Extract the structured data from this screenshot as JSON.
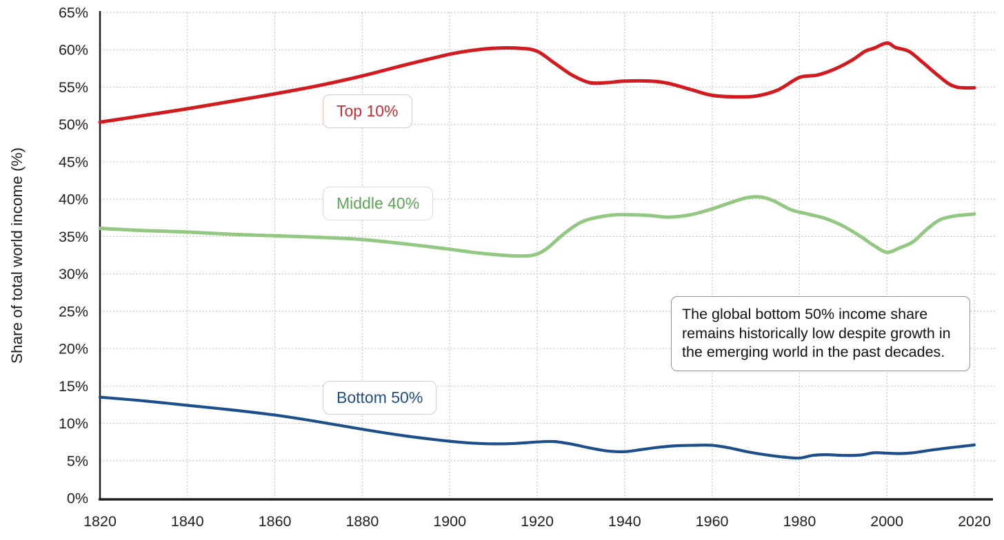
{
  "chart_data": {
    "type": "line",
    "title": "",
    "xlabel": "",
    "ylabel": "Share of total world income (%)",
    "xlim": [
      1820,
      2020
    ],
    "ylim": [
      0,
      65
    ],
    "x_ticks": [
      1820,
      1840,
      1860,
      1880,
      1900,
      1920,
      1940,
      1960,
      1980,
      2000,
      2020
    ],
    "y_ticks": [
      0,
      5,
      10,
      15,
      20,
      25,
      30,
      35,
      40,
      45,
      50,
      55,
      60,
      65
    ],
    "y_tick_suffix": "%",
    "grid": "dotted both axes",
    "legend_position": "inline boxed labels on lines",
    "series": [
      {
        "name": "Top 10%",
        "color": "#d21b1e",
        "points": [
          [
            1820,
            50.3
          ],
          [
            1830,
            51.2
          ],
          [
            1840,
            52.1
          ],
          [
            1850,
            53.1
          ],
          [
            1860,
            54.1
          ],
          [
            1870,
            55.2
          ],
          [
            1880,
            56.5
          ],
          [
            1890,
            58.0
          ],
          [
            1900,
            59.4
          ],
          [
            1905,
            59.9
          ],
          [
            1910,
            60.2
          ],
          [
            1916,
            60.2
          ],
          [
            1920,
            59.8
          ],
          [
            1924,
            58.2
          ],
          [
            1928,
            56.6
          ],
          [
            1932,
            55.6
          ],
          [
            1936,
            55.6
          ],
          [
            1940,
            55.8
          ],
          [
            1946,
            55.8
          ],
          [
            1950,
            55.5
          ],
          [
            1955,
            54.7
          ],
          [
            1960,
            53.9
          ],
          [
            1965,
            53.7
          ],
          [
            1970,
            53.8
          ],
          [
            1975,
            54.6
          ],
          [
            1980,
            56.3
          ],
          [
            1984,
            56.6
          ],
          [
            1988,
            57.4
          ],
          [
            1992,
            58.6
          ],
          [
            1995,
            59.8
          ],
          [
            1997,
            60.2
          ],
          [
            2000,
            60.9
          ],
          [
            2002,
            60.3
          ],
          [
            2005,
            59.8
          ],
          [
            2008,
            58.4
          ],
          [
            2011,
            56.9
          ],
          [
            2014,
            55.5
          ],
          [
            2016,
            55.0
          ],
          [
            2018,
            54.9
          ],
          [
            2020,
            54.9
          ]
        ]
      },
      {
        "name": "Middle 40%",
        "color": "#92c882",
        "points": [
          [
            1820,
            36.1
          ],
          [
            1830,
            35.8
          ],
          [
            1840,
            35.6
          ],
          [
            1850,
            35.3
          ],
          [
            1860,
            35.1
          ],
          [
            1870,
            34.9
          ],
          [
            1880,
            34.6
          ],
          [
            1890,
            34.0
          ],
          [
            1900,
            33.3
          ],
          [
            1905,
            32.9
          ],
          [
            1910,
            32.6
          ],
          [
            1915,
            32.4
          ],
          [
            1919,
            32.5
          ],
          [
            1922,
            33.3
          ],
          [
            1926,
            35.3
          ],
          [
            1930,
            36.9
          ],
          [
            1934,
            37.6
          ],
          [
            1938,
            37.9
          ],
          [
            1942,
            37.9
          ],
          [
            1946,
            37.8
          ],
          [
            1950,
            37.6
          ],
          [
            1955,
            37.9
          ],
          [
            1960,
            38.7
          ],
          [
            1964,
            39.5
          ],
          [
            1968,
            40.2
          ],
          [
            1971,
            40.3
          ],
          [
            1974,
            39.8
          ],
          [
            1978,
            38.6
          ],
          [
            1982,
            38.0
          ],
          [
            1986,
            37.4
          ],
          [
            1990,
            36.4
          ],
          [
            1994,
            35.0
          ],
          [
            1997,
            33.8
          ],
          [
            2000,
            32.9
          ],
          [
            2003,
            33.5
          ],
          [
            2006,
            34.3
          ],
          [
            2009,
            35.9
          ],
          [
            2012,
            37.2
          ],
          [
            2015,
            37.7
          ],
          [
            2018,
            37.9
          ],
          [
            2020,
            38.0
          ]
        ]
      },
      {
        "name": "Bottom 50%",
        "color": "#1d4e8c",
        "points": [
          [
            1820,
            13.5
          ],
          [
            1830,
            13.0
          ],
          [
            1840,
            12.4
          ],
          [
            1850,
            11.8
          ],
          [
            1860,
            11.1
          ],
          [
            1870,
            10.2
          ],
          [
            1880,
            9.2
          ],
          [
            1890,
            8.3
          ],
          [
            1900,
            7.6
          ],
          [
            1905,
            7.35
          ],
          [
            1910,
            7.25
          ],
          [
            1915,
            7.3
          ],
          [
            1920,
            7.5
          ],
          [
            1924,
            7.55
          ],
          [
            1928,
            7.2
          ],
          [
            1932,
            6.7
          ],
          [
            1936,
            6.3
          ],
          [
            1940,
            6.2
          ],
          [
            1944,
            6.5
          ],
          [
            1948,
            6.8
          ],
          [
            1952,
            7.0
          ],
          [
            1956,
            7.05
          ],
          [
            1960,
            7.05
          ],
          [
            1964,
            6.7
          ],
          [
            1968,
            6.2
          ],
          [
            1972,
            5.8
          ],
          [
            1976,
            5.5
          ],
          [
            1980,
            5.35
          ],
          [
            1983,
            5.7
          ],
          [
            1986,
            5.8
          ],
          [
            1990,
            5.7
          ],
          [
            1994,
            5.75
          ],
          [
            1997,
            6.05
          ],
          [
            2000,
            6.0
          ],
          [
            2003,
            5.95
          ],
          [
            2006,
            6.05
          ],
          [
            2010,
            6.4
          ],
          [
            2014,
            6.7
          ],
          [
            2017,
            6.9
          ],
          [
            2020,
            7.1
          ]
        ]
      }
    ],
    "series_labels": [
      {
        "text": "Top 10%",
        "text_color": "#cf2b2e",
        "border_color": "#edc0ad"
      },
      {
        "text": "Middle 40%",
        "text_color": "#5ba653",
        "border_color": "#cfe3ca"
      },
      {
        "text": "Bottom 50%",
        "text_color": "#1d4e8c",
        "border_color": "#c5cedf"
      }
    ],
    "annotation": {
      "text": "The global bottom 50% income share remains historically low despite growth in the emerging world in the past decades."
    },
    "colors": {
      "grid": "#b5b5b5",
      "axis": "#1c1c1c",
      "tick_text": "#1f1f1f"
    }
  }
}
